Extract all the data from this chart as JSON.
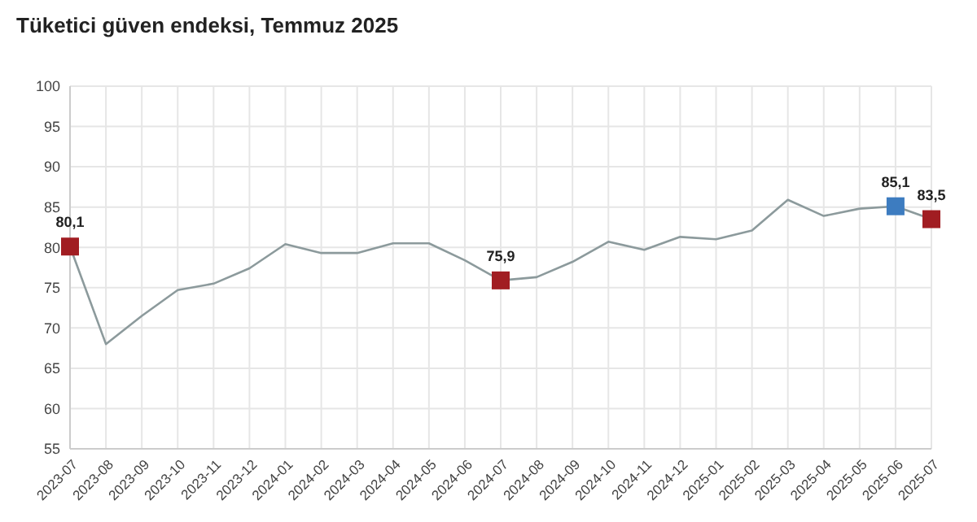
{
  "chart_data": {
    "type": "line",
    "title": "Tüketici güven endeksi, Temmuz 2025",
    "categories": [
      "2023-07",
      "2023-08",
      "2023-09",
      "2023-10",
      "2023-11",
      "2023-12",
      "2024-01",
      "2024-02",
      "2024-03",
      "2024-04",
      "2024-05",
      "2024-06",
      "2024-07",
      "2024-08",
      "2024-09",
      "2024-10",
      "2024-11",
      "2024-12",
      "2025-01",
      "2025-02",
      "2025-03",
      "2025-04",
      "2025-05",
      "2025-06",
      "2025-07"
    ],
    "series": [
      {
        "color": "#8c9a9c",
        "marker": "none",
        "values": [
          80.1,
          68.0,
          71.5,
          74.7,
          75.5,
          77.4,
          80.4,
          79.3,
          79.3,
          80.5,
          80.5,
          78.4,
          75.9,
          76.3,
          78.2,
          80.7,
          79.7,
          81.3,
          81.0,
          82.1,
          85.9,
          83.9,
          84.8,
          85.1,
          83.5
        ]
      },
      {
        "type": "scatter",
        "marker": "square",
        "values": [
          80.1,
          null,
          null,
          null,
          null,
          null,
          null,
          null,
          null,
          null,
          null,
          null,
          75.9,
          null,
          null,
          null,
          null,
          null,
          null,
          null,
          null,
          null,
          null,
          85.1,
          83.5
        ],
        "colors": [
          "#a11d22",
          null,
          null,
          null,
          null,
          null,
          null,
          null,
          null,
          null,
          null,
          null,
          "#a11d22",
          null,
          null,
          null,
          null,
          null,
          null,
          null,
          null,
          null,
          null,
          "#3d7cc0",
          "#a11d22"
        ],
        "value_labels": [
          "80,1",
          null,
          null,
          null,
          null,
          null,
          null,
          null,
          null,
          null,
          null,
          null,
          "75,9",
          null,
          null,
          null,
          null,
          null,
          null,
          null,
          null,
          null,
          null,
          "85,1",
          "83,5"
        ]
      }
    ],
    "ylim": [
      55,
      100
    ],
    "yticks": [
      55,
      60,
      65,
      70,
      75,
      80,
      85,
      90,
      95,
      100
    ],
    "grid": true,
    "line_style": "solid"
  }
}
